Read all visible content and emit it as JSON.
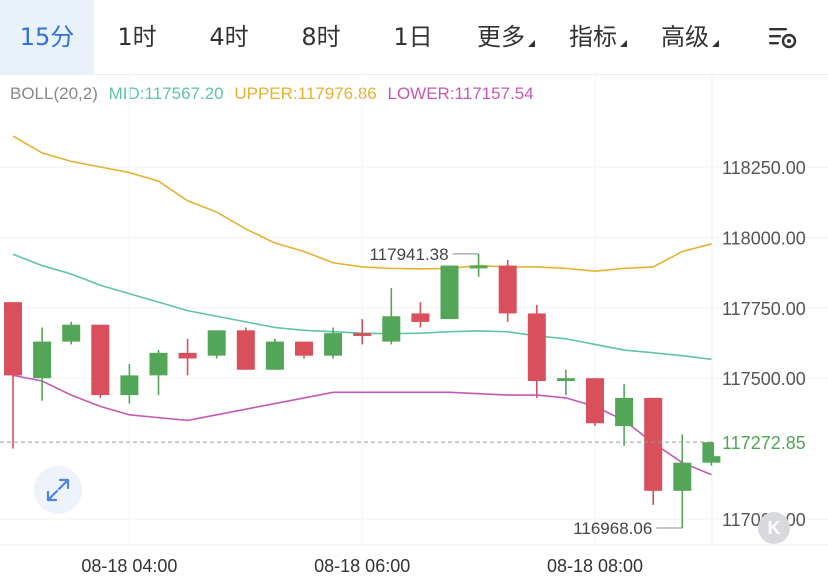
{
  "tabs": [
    {
      "label": "15分",
      "active": true
    },
    {
      "label": "1时",
      "active": false
    },
    {
      "label": "4时",
      "active": false
    },
    {
      "label": "8时",
      "active": false
    },
    {
      "label": "1日",
      "active": false
    },
    {
      "label": "更多",
      "active": false,
      "dropdown": true
    },
    {
      "label": "指标",
      "active": false,
      "dropdown": true
    },
    {
      "label": "高级",
      "active": false,
      "dropdown": true
    }
  ],
  "settings_icon": "chart-settings-icon",
  "indicator": {
    "name": "BOLL(20,2)",
    "mid": "MID:117567.20",
    "upper": "UPPER:117976.86",
    "lower": "LOWER:117157.54"
  },
  "colors": {
    "up": "#53a557",
    "down": "#d9505c",
    "mid": "#5ec4a6",
    "upper": "#e3b233",
    "lower": "#c45ab3",
    "active_tab": "#2f73d9"
  },
  "logo_text": "K",
  "chart_data": {
    "type": "candlestick",
    "y_ticks": [
      "118250.00",
      "118000.00",
      "117750.00",
      "117500.00",
      "117000.00"
    ],
    "x_ticks": [
      {
        "label": "08-18 04:00",
        "index": 4
      },
      {
        "label": "08-18 06:00",
        "index": 12
      },
      {
        "label": "08-18 08:00",
        "index": 20
      }
    ],
    "last_price": 117272.85,
    "last_price_label": "117272.85",
    "high_label": {
      "text": "117941.38",
      "index": 16
    },
    "low_label": {
      "text": "116968.06",
      "index": 23
    },
    "candles": [
      {
        "o": 117770,
        "c": 117510,
        "h": 117770,
        "l": 117250
      },
      {
        "o": 117500,
        "c": 117630,
        "h": 117680,
        "l": 117420
      },
      {
        "o": 117630,
        "c": 117690,
        "h": 117700,
        "l": 117620
      },
      {
        "o": 117690,
        "c": 117440,
        "h": 117690,
        "l": 117430
      },
      {
        "o": 117440,
        "c": 117510,
        "h": 117550,
        "l": 117410
      },
      {
        "o": 117510,
        "c": 117590,
        "h": 117600,
        "l": 117440
      },
      {
        "o": 117590,
        "c": 117570,
        "h": 117640,
        "l": 117510
      },
      {
        "o": 117580,
        "c": 117670,
        "h": 117670,
        "l": 117570
      },
      {
        "o": 117670,
        "c": 117530,
        "h": 117680,
        "l": 117530
      },
      {
        "o": 117530,
        "c": 117630,
        "h": 117640,
        "l": 117530
      },
      {
        "o": 117630,
        "c": 117580,
        "h": 117630,
        "l": 117570
      },
      {
        "o": 117580,
        "c": 117660,
        "h": 117680,
        "l": 117570
      },
      {
        "o": 117660,
        "c": 117650,
        "h": 117710,
        "l": 117620
      },
      {
        "o": 117630,
        "c": 117720,
        "h": 117820,
        "l": 117620
      },
      {
        "o": 117730,
        "c": 117700,
        "h": 117770,
        "l": 117680
      },
      {
        "o": 117710,
        "c": 117900,
        "h": 117900,
        "l": 117710
      },
      {
        "o": 117890,
        "c": 117900,
        "h": 117941.38,
        "l": 117860
      },
      {
        "o": 117900,
        "c": 117730,
        "h": 117920,
        "l": 117700
      },
      {
        "o": 117730,
        "c": 117490,
        "h": 117760,
        "l": 117430
      },
      {
        "o": 117490,
        "c": 117500,
        "h": 117530,
        "l": 117440
      },
      {
        "o": 117500,
        "c": 117340,
        "h": 117500,
        "l": 117330
      },
      {
        "o": 117330,
        "c": 117430,
        "h": 117480,
        "l": 117260
      },
      {
        "o": 117430,
        "c": 117100,
        "h": 117430,
        "l": 117050
      },
      {
        "o": 117100,
        "c": 117200,
        "h": 117300,
        "l": 116968.06
      },
      {
        "o": 117200,
        "c": 117272.85,
        "h": 117275,
        "l": 117190
      }
    ],
    "boll_mid": [
      117940,
      117900,
      117870,
      117830,
      117800,
      117770,
      117740,
      117720,
      117700,
      117680,
      117670,
      117665,
      117660,
      117658,
      117660,
      117665,
      117668,
      117665,
      117650,
      117640,
      117620,
      117600,
      117590,
      117580,
      117567.2
    ],
    "boll_upper": [
      118360,
      118300,
      118270,
      118250,
      118230,
      118200,
      118130,
      118090,
      118030,
      117980,
      117950,
      117910,
      117895,
      117890,
      117888,
      117890,
      117900,
      117895,
      117895,
      117890,
      117880,
      117890,
      117895,
      117950,
      117976.86
    ],
    "boll_lower": [
      117510,
      117490,
      117440,
      117400,
      117370,
      117360,
      117350,
      117370,
      117390,
      117410,
      117430,
      117450,
      117450,
      117450,
      117450,
      117450,
      117445,
      117440,
      117440,
      117430,
      117400,
      117350,
      117270,
      117200,
      117157.54
    ]
  }
}
